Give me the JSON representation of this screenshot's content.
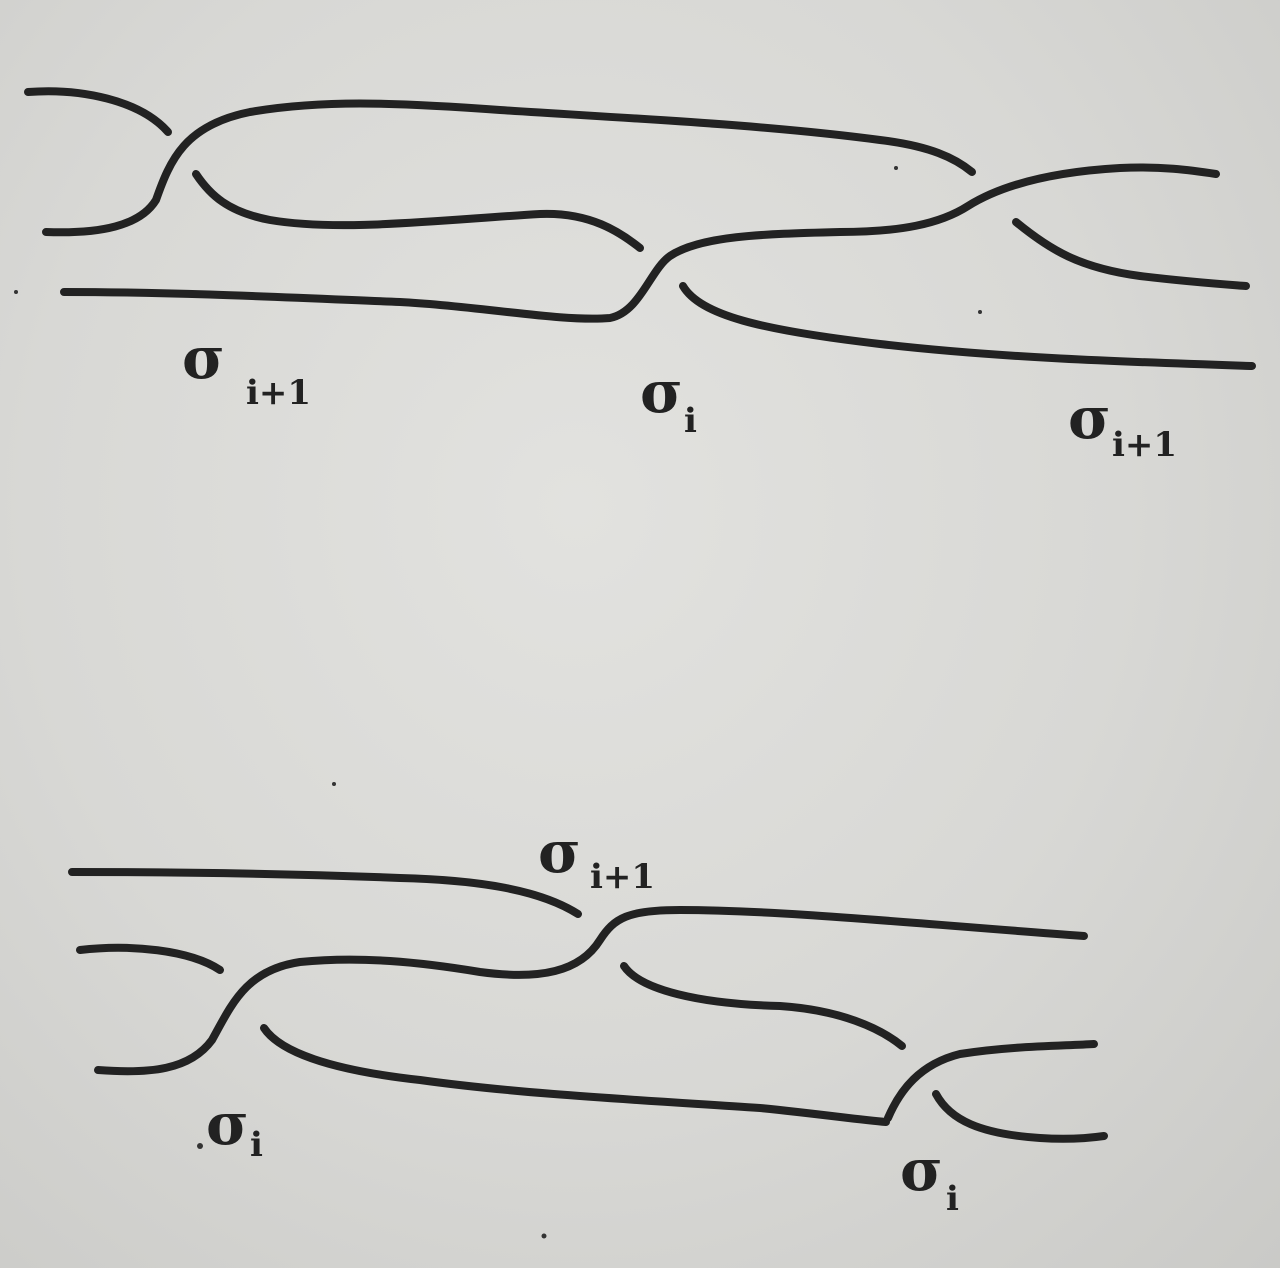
{
  "top_diagram": {
    "labels": [
      {
        "symbol": "σ",
        "sub": "i+1"
      },
      {
        "symbol": "σ",
        "sub": "i"
      },
      {
        "symbol": "σ",
        "sub": "i+1"
      }
    ]
  },
  "bottom_diagram": {
    "labels": [
      {
        "symbol": "σ",
        "sub": "i+1"
      },
      {
        "symbol": "σ",
        "sub": "i"
      },
      {
        "symbol": "σ",
        "sub": "i"
      }
    ]
  },
  "colors": {
    "ink": "#222222",
    "paper": "#dcdcd9"
  }
}
